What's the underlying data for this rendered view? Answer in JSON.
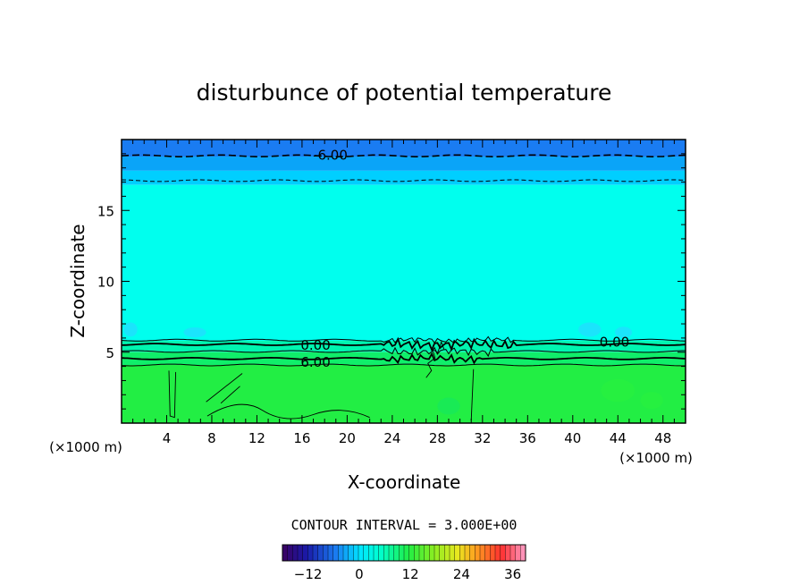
{
  "chart_data": {
    "type": "heatmap",
    "title": "disturbunce of potential temperature",
    "xlabel": "X-coordinate",
    "ylabel": "Z-coordinate",
    "x_unit": "(×1000 m)",
    "y_unit": "(×1000 m)",
    "xlim": [
      0,
      50
    ],
    "ylim": [
      0,
      20
    ],
    "x_ticks": [
      4,
      8,
      12,
      16,
      20,
      24,
      28,
      32,
      36,
      40,
      44,
      48
    ],
    "y_ticks": [
      5,
      10,
      15
    ],
    "contour_interval_label": "CONTOUR INTERVAL = 3.000E+00",
    "contour_labels": [
      {
        "text": "-6.00",
        "x": 18.5,
        "z": 18.9
      },
      {
        "text": "0.00",
        "x": 17.2,
        "z": 5.5
      },
      {
        "text": "0.00",
        "x": 43.7,
        "z": 5.7
      },
      {
        "text": "6.00",
        "x": 17.2,
        "z": 4.3
      }
    ],
    "bands": [
      {
        "z0": 18.8,
        "z1": 20.0,
        "value": -9,
        "color": "#1a7cf2"
      },
      {
        "z0": 17.8,
        "z1": 18.8,
        "value": -6,
        "color": "#0aa4f8"
      },
      {
        "z0": 16.8,
        "z1": 17.8,
        "value": -3,
        "color": "#00cfff"
      },
      {
        "z0": 5.8,
        "z1": 16.8,
        "value": 0,
        "color": "#00ffee"
      },
      {
        "z0": 5.0,
        "z1": 5.8,
        "value": 3,
        "color": "#00f5b0"
      },
      {
        "z0": 4.1,
        "z1": 5.0,
        "value": 6,
        "color": "#10ee6a"
      },
      {
        "z0": 0.0,
        "z1": 4.1,
        "value": 9,
        "color": "#22ee44"
      }
    ],
    "colorbar": {
      "min": -18,
      "max": 39,
      "tick_values": [
        -12,
        0,
        12,
        24,
        36
      ],
      "tick_labels": [
        "−12",
        "0",
        "12",
        "24",
        "36"
      ]
    }
  }
}
